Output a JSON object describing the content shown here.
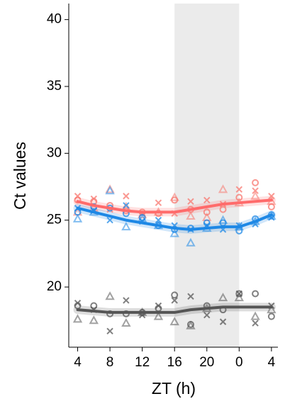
{
  "chart_data": {
    "type": "scatter",
    "x_label": "ZT (h)",
    "y_label": "Ct values",
    "x": [
      4,
      6,
      8,
      10,
      12,
      14,
      16,
      18,
      20,
      22,
      24,
      26,
      28
    ],
    "xlim": [
      2.9,
      28.8
    ],
    "ylim": [
      15.5,
      41.2
    ],
    "xticks": [
      4,
      8,
      12,
      16,
      20,
      {
        "value": 24,
        "label": "0"
      },
      {
        "value": 28,
        "label": "4"
      }
    ],
    "yticks": [
      20,
      25,
      30,
      35,
      40
    ],
    "shade_x": [
      16,
      24
    ],
    "shade_color": "#ebebeb",
    "series": [
      {
        "color": "#f8766d",
        "marker": "circle",
        "values": [
          26.5,
          26.4,
          26.1,
          25.7,
          25.6,
          25.5,
          26.5,
          25.8,
          25.6,
          25.8,
          26.7,
          27.8,
          26.0
        ]
      },
      {
        "color": "#f8766d",
        "marker": "cross",
        "values": [
          26.8,
          26.6,
          25.8,
          26.8,
          25.5,
          26.3,
          25.5,
          26.4,
          26.5,
          26.2,
          27.3,
          27.2,
          26.8
        ]
      },
      {
        "color": "#f8766d",
        "marker": "triangle",
        "values": [
          25.6,
          25.9,
          27.3,
          26.0,
          25.4,
          25.6,
          26.7,
          25.3,
          25.2,
          27.3,
          26.3,
          26.8,
          26.4
        ]
      },
      {
        "color": "#1e88e5",
        "marker": "circle",
        "values": [
          25.6,
          26.0,
          25.9,
          25.5,
          25.2,
          24.6,
          24.3,
          24.4,
          24.8,
          24.8,
          24.2,
          25.1,
          25.4
        ]
      },
      {
        "color": "#1e88e5",
        "marker": "cross",
        "values": [
          25.9,
          25.7,
          25.0,
          26.1,
          24.9,
          25.0,
          24.6,
          24.3,
          24.6,
          24.3,
          24.6,
          24.7,
          25.2
        ]
      },
      {
        "color": "#1e88e5",
        "marker": "triangle",
        "values": [
          25.1,
          25.6,
          27.2,
          24.5,
          25.1,
          24.6,
          24.0,
          23.3,
          24.4,
          25.0,
          24.5,
          24.9,
          25.3
        ]
      },
      {
        "color": "#555555",
        "marker": "circle",
        "values": [
          18.6,
          18.6,
          18.0,
          18.0,
          18.1,
          18.4,
          19.4,
          17.2,
          18.6,
          18.3,
          19.5,
          19.5,
          17.8
        ]
      },
      {
        "color": "#555555",
        "marker": "cross",
        "values": [
          18.8,
          18.3,
          16.7,
          19.0,
          17.9,
          18.6,
          19.0,
          19.3,
          17.9,
          17.4,
          19.5,
          17.3,
          18.6
        ]
      },
      {
        "color": "#555555",
        "marker": "triangle",
        "values": [
          17.6,
          17.5,
          19.3,
          17.3,
          18.1,
          17.8,
          17.4,
          17.1,
          18.4,
          19.2,
          19.2,
          17.8,
          18.3
        ]
      }
    ],
    "fits": [
      {
        "color": "#ff6b6b",
        "values": [
          26.4,
          26.1,
          25.9,
          25.7,
          25.6,
          25.6,
          25.6,
          25.8,
          26.0,
          26.2,
          26.3,
          26.4,
          26.5
        ]
      },
      {
        "color": "#1e88e5",
        "values": [
          25.9,
          25.6,
          25.3,
          25.0,
          24.8,
          24.6,
          24.4,
          24.3,
          24.4,
          24.5,
          24.5,
          24.9,
          25.4
        ]
      },
      {
        "color": "#555555",
        "values": [
          18.3,
          18.2,
          18.1,
          18.1,
          18.1,
          18.1,
          18.1,
          18.3,
          18.4,
          18.5,
          18.5,
          18.5,
          18.5
        ]
      }
    ]
  }
}
